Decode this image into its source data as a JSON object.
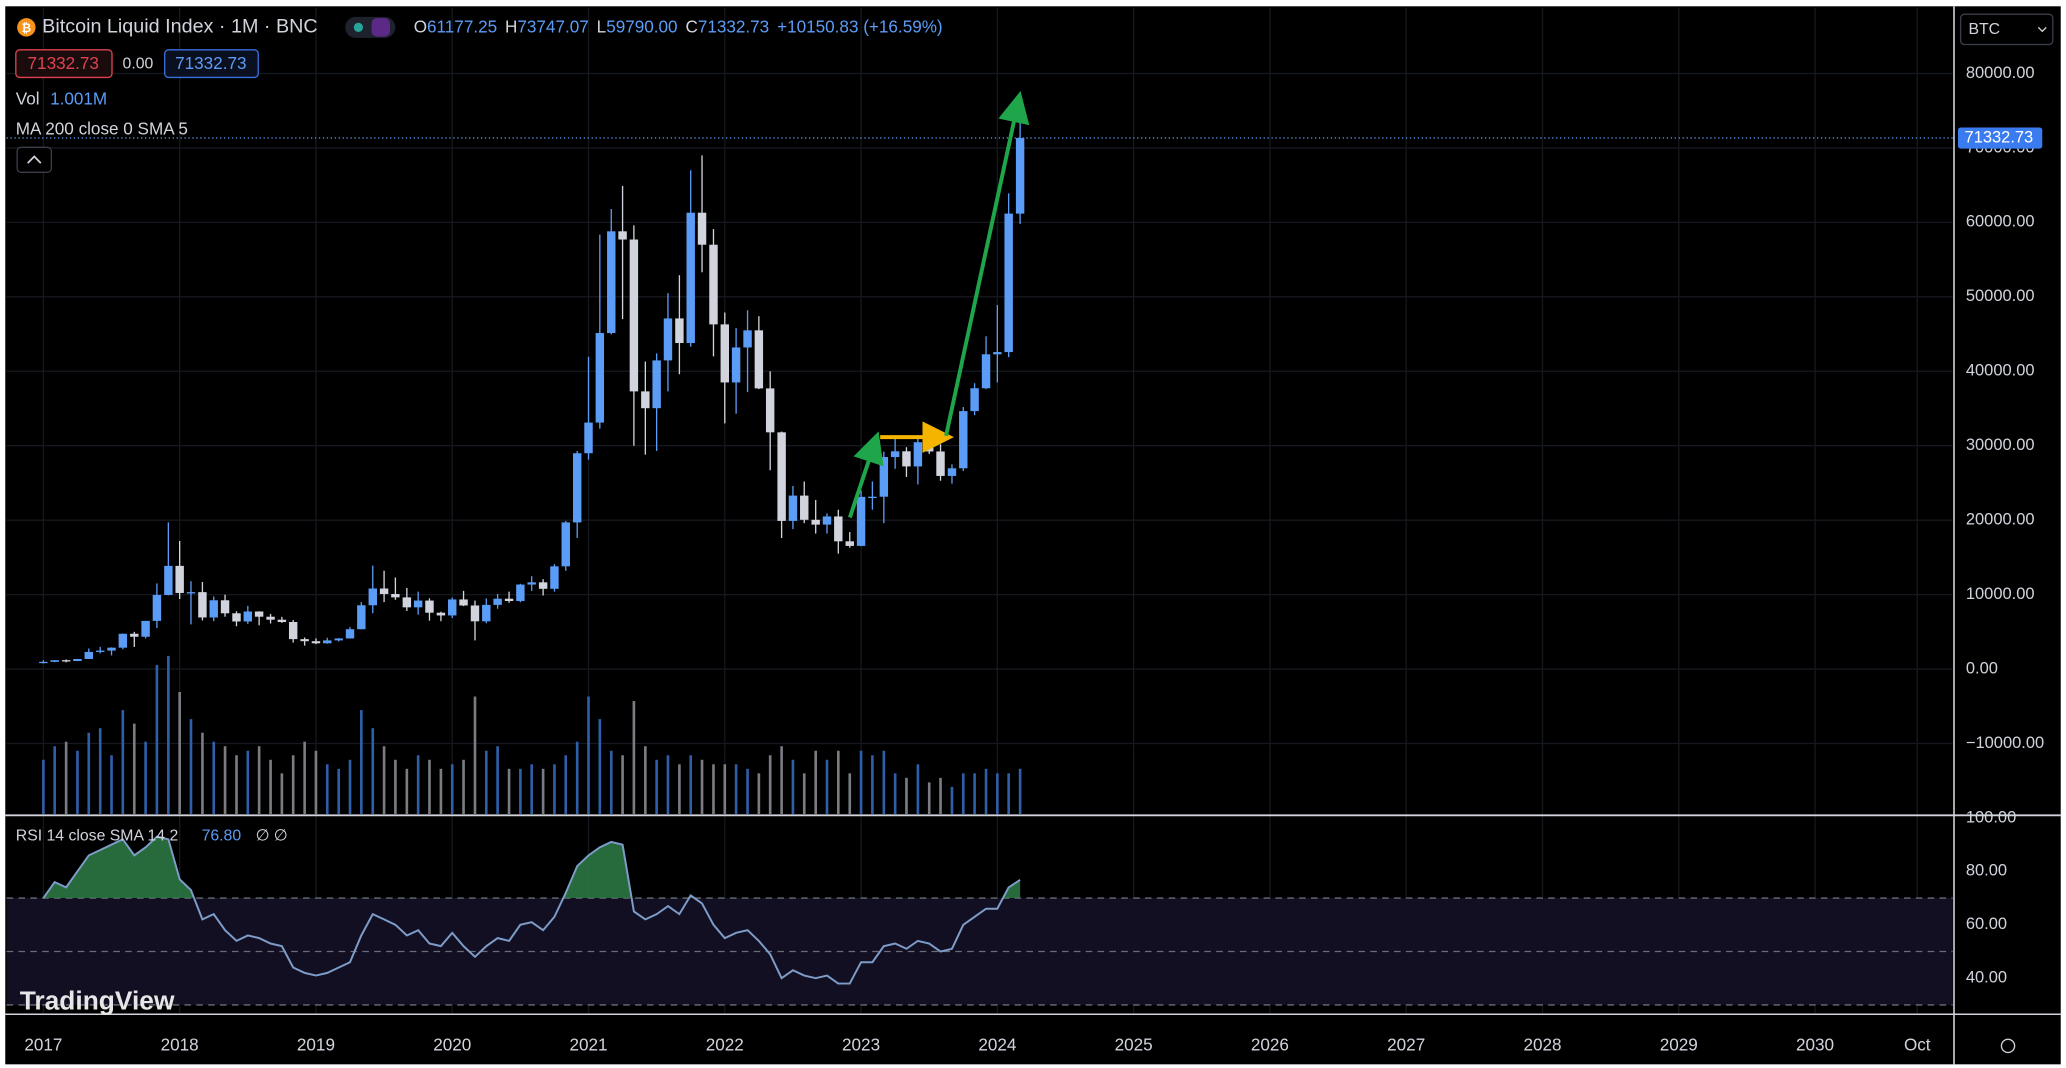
{
  "chart_data": {
    "type": "candlestick",
    "title": "Bitcoin Liquid Index · 1M · BNC",
    "legend": [
      {
        "key": "O",
        "value": "61177.25"
      },
      {
        "key": "H",
        "value": "73747.07"
      },
      {
        "key": "L",
        "value": "59790.00"
      },
      {
        "key": "C",
        "value": "71332.73"
      }
    ],
    "change": "+10150.83 (+16.59%)",
    "sell_price": "71332.73",
    "spread": "0.00",
    "buy_price": "71332.73",
    "vol_name": "Vol",
    "vol_label": "1.001M",
    "ma_label": "MA 200 close 0 SMA 5",
    "symbol_button": "BTC",
    "last_price_label": "71332.73",
    "brand": "TradingView",
    "x": [
      2017,
      2017.083,
      2017.167,
      2017.25,
      2017.333,
      2017.417,
      2017.5,
      2017.583,
      2017.667,
      2017.75,
      2017.833,
      2017.917,
      2018,
      2018.083,
      2018.167,
      2018.25,
      2018.333,
      2018.417,
      2018.5,
      2018.583,
      2018.667,
      2018.75,
      2018.833,
      2018.917,
      2019,
      2019.083,
      2019.167,
      2019.25,
      2019.333,
      2019.417,
      2019.5,
      2019.583,
      2019.667,
      2019.75,
      2019.833,
      2019.917,
      2020,
      2020.083,
      2020.167,
      2020.25,
      2020.333,
      2020.417,
      2020.5,
      2020.583,
      2020.667,
      2020.75,
      2020.833,
      2020.917,
      2021,
      2021.083,
      2021.167,
      2021.25,
      2021.333,
      2021.417,
      2021.5,
      2021.583,
      2021.667,
      2021.75,
      2021.833,
      2021.917,
      2022,
      2022.083,
      2022.167,
      2022.25,
      2022.333,
      2022.417,
      2022.5,
      2022.583,
      2022.667,
      2022.75,
      2022.833,
      2022.917,
      2023,
      2023.083,
      2023.167,
      2023.25,
      2023.333,
      2023.417,
      2023.5,
      2023.583,
      2023.667,
      2023.75,
      2023.833,
      2023.917,
      2024,
      2024.083,
      2024.167
    ],
    "open": [
      963,
      970,
      1190,
      1080,
      1350,
      2300,
      2480,
      2870,
      4740,
      4340,
      6470,
      9950,
      13860,
      10220,
      10330,
      6930,
      9240,
      7490,
      6390,
      7730,
      7030,
      6630,
      6320,
      4020,
      3740,
      3460,
      3850,
      4110,
      5350,
      8570,
      10820,
      10080,
      9630,
      8290,
      9200,
      7570,
      7200,
      9350,
      8540,
      6410,
      8620,
      9450,
      9140,
      11350,
      11650,
      10780,
      13800,
      19700,
      28990,
      33110,
      45140,
      58800,
      57700,
      37300,
      35040,
      41460,
      47100,
      43800,
      61300,
      57000,
      46300,
      38500,
      43200,
      45500,
      37700,
      31800,
      19900,
      23300,
      20050,
      19400,
      20500,
      17160,
      16540,
      23130,
      23150,
      28480,
      29250,
      27220,
      30470,
      29230,
      25940,
      26970,
      34650,
      37720,
      42280,
      42580,
      61177.25
    ],
    "high": [
      1190,
      1200,
      1290,
      1350,
      2760,
      2980,
      2920,
      4770,
      5000,
      6470,
      11500,
      19700,
      17200,
      11800,
      11700,
      9750,
      9990,
      7760,
      8480,
      7760,
      7410,
      7010,
      6580,
      4240,
      4110,
      4200,
      4150,
      5620,
      9000,
      13900,
      13200,
      12300,
      10900,
      10400,
      9500,
      7700,
      9600,
      10500,
      9200,
      9480,
      10080,
      10400,
      11450,
      12480,
      12070,
      14100,
      19900,
      29300,
      41950,
      58350,
      61800,
      64900,
      59600,
      41300,
      42400,
      50500,
      52900,
      67000,
      69000,
      59100,
      47900,
      45800,
      48200,
      47400,
      40000,
      31900,
      24600,
      25200,
      22700,
      20900,
      21400,
      18400,
      23950,
      25200,
      29200,
      31000,
      29800,
      31400,
      31800,
      30200,
      27500,
      35200,
      38400,
      44700,
      48900,
      63900,
      73747.07
    ],
    "low": [
      750,
      920,
      890,
      1060,
      1350,
      2100,
      1830,
      2670,
      2970,
      4110,
      5500,
      9900,
      9400,
      6000,
      6530,
      6430,
      7030,
      5750,
      6070,
      5880,
      6120,
      6200,
      3550,
      3150,
      3350,
      3400,
      3700,
      4080,
      5330,
      7500,
      9000,
      9300,
      7800,
      7300,
      6500,
      6430,
      6850,
      8450,
      3850,
      6150,
      8100,
      8900,
      8970,
      10500,
      9880,
      10400,
      13200,
      17600,
      28130,
      32300,
      44950,
      47000,
      30000,
      28800,
      29300,
      37300,
      39600,
      43300,
      53300,
      42000,
      33000,
      34300,
      37200,
      37600,
      26700,
      17600,
      18800,
      19600,
      18200,
      18200,
      15500,
      16300,
      16500,
      21400,
      19600,
      26900,
      25800,
      24800,
      28900,
      25300,
      24900,
      26600,
      34100,
      37600,
      38500,
      41900,
      59790.0
    ],
    "close": [
      970,
      1190,
      1080,
      1350,
      2300,
      2480,
      2870,
      4740,
      4340,
      6470,
      9950,
      13860,
      10220,
      10330,
      6930,
      9240,
      7490,
      6390,
      7730,
      7030,
      6630,
      6320,
      4020,
      3740,
      3460,
      3850,
      4110,
      5350,
      8570,
      10820,
      10080,
      9630,
      8290,
      9200,
      7570,
      7200,
      9350,
      8540,
      6410,
      8620,
      9450,
      9140,
      11350,
      11650,
      10780,
      13800,
      19700,
      28990,
      33110,
      45140,
      58800,
      57700,
      37300,
      35040,
      41460,
      47100,
      43800,
      61300,
      57000,
      46300,
      38500,
      43200,
      45500,
      37700,
      31800,
      19900,
      23300,
      20050,
      19400,
      20500,
      17160,
      16540,
      23130,
      23150,
      28480,
      29250,
      27220,
      30470,
      29230,
      25940,
      26970,
      34650,
      37720,
      42280,
      42580,
      61181.9,
      71332.73
    ],
    "volume": [
      1.2,
      1.5,
      1.6,
      1.4,
      1.8,
      1.9,
      1.3,
      2.3,
      2.0,
      1.6,
      3.3,
      3.5,
      2.7,
      2.1,
      1.8,
      1.6,
      1.5,
      1.3,
      1.4,
      1.5,
      1.2,
      0.9,
      1.3,
      1.6,
      1.4,
      1.1,
      1.0,
      1.2,
      2.3,
      1.9,
      1.5,
      1.2,
      1.0,
      1.3,
      1.2,
      1.0,
      1.1,
      1.2,
      2.6,
      1.4,
      1.5,
      1.0,
      1.0,
      1.1,
      1.0,
      1.1,
      1.3,
      1.6,
      2.6,
      2.1,
      1.4,
      1.3,
      2.5,
      1.5,
      1.2,
      1.3,
      1.1,
      1.3,
      1.2,
      1.1,
      1.1,
      1.1,
      1.0,
      0.9,
      1.3,
      1.5,
      1.2,
      0.9,
      1.4,
      1.2,
      1.4,
      0.9,
      1.4,
      1.3,
      1.4,
      0.9,
      0.8,
      1.1,
      0.7,
      0.8,
      0.6,
      0.9,
      0.9,
      1.0,
      0.9,
      0.9,
      1.001
    ],
    "up_color": "#5b9cf6",
    "down_color": "#d1d4dc",
    "xlim": [
      2016.73,
      2031.01
    ],
    "xticks": [
      2017,
      2018,
      2019,
      2020,
      2021,
      2022,
      2023,
      2024,
      2025,
      2026,
      2027,
      2028,
      2029,
      2030,
      {
        "value": 2030.75,
        "label": "Oct"
      }
    ],
    "ylim": [
      -19470,
      88850
    ],
    "yticks": [
      {
        "value": 80000,
        "label": "80000.00"
      },
      {
        "value": 70000,
        "label": "70000.00"
      },
      {
        "value": 60000,
        "label": "60000.00"
      },
      {
        "value": 50000,
        "label": "50000.00"
      },
      {
        "value": 40000,
        "label": "40000.00"
      },
      {
        "value": 30000,
        "label": "30000.00"
      },
      {
        "value": 20000,
        "label": "20000.00"
      },
      {
        "value": 10000,
        "label": "10000.00"
      },
      {
        "value": 0,
        "label": "0.00"
      },
      {
        "value": -10000,
        "label": "−10000.00"
      }
    ],
    "grid": true,
    "rsi": {
      "label": "RSI 14 close SMA 14 2",
      "value_label": "76.80",
      "extra": "∅ ∅",
      "color": "#7e9cc8",
      "fill_color": "#2e7d46",
      "values": [
        70,
        76,
        74,
        80,
        86,
        88,
        90,
        92,
        86,
        89,
        93,
        92,
        77,
        73,
        62,
        64,
        58,
        54,
        56,
        55,
        53,
        52,
        44,
        42,
        41,
        42,
        44,
        46,
        56,
        64,
        62,
        60,
        56,
        58,
        53,
        52,
        57,
        52,
        48,
        52,
        55,
        54,
        60,
        61,
        58,
        63,
        72,
        82,
        86,
        89,
        91,
        90,
        65,
        62,
        64,
        67,
        64,
        71,
        68,
        60,
        55,
        57,
        58,
        54,
        49,
        40,
        43,
        41,
        40,
        41,
        38,
        38,
        46,
        46,
        52,
        53,
        51,
        54,
        53,
        50,
        51,
        60,
        63,
        66,
        66,
        74,
        76.8
      ],
      "ylim": [
        27,
        100
      ],
      "levels": [
        70,
        50,
        30
      ],
      "yticks": [
        {
          "value": 100,
          "label": "100.00"
        },
        {
          "value": 80,
          "label": "80.00"
        },
        {
          "value": 60,
          "label": "60.00"
        },
        {
          "value": 40,
          "label": "40.00"
        }
      ]
    }
  }
}
